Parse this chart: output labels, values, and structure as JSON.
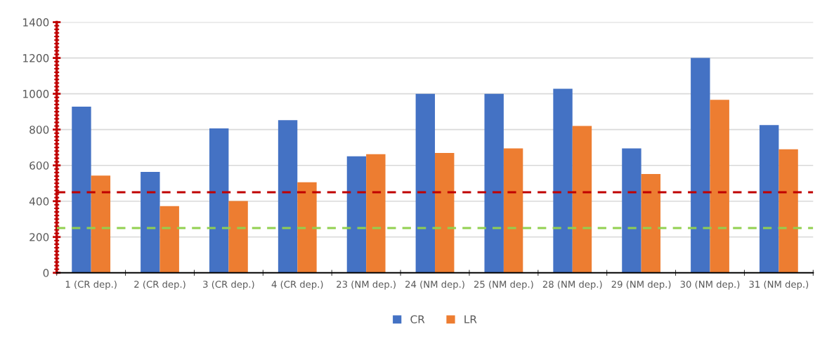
{
  "chart_data": {
    "type": "bar",
    "categories": [
      "1 (CR dep.)",
      "2 (CR dep.)",
      "3 (CR dep.)",
      "4 (CR dep.)",
      "23 (NM dep.)",
      "24 (NM dep.)",
      "25 (NM dep.)",
      "28 (NM dep.)",
      "29 (NM dep.)",
      "30 (NM dep.)",
      "31 (NM dep.)"
    ],
    "series": [
      {
        "name": "CR",
        "color": "#4472c4",
        "values": [
          928,
          564,
          807,
          853,
          651,
          1000,
          1000,
          1028,
          695,
          1200,
          825
        ]
      },
      {
        "name": "LR",
        "color": "#ed7d31",
        "values": [
          543,
          373,
          401,
          506,
          663,
          669,
          695,
          820,
          552,
          966,
          690
        ]
      }
    ],
    "ylim": [
      0,
      1400
    ],
    "yticks": [
      0,
      200,
      400,
      600,
      800,
      1000,
      1200,
      1400
    ],
    "grid": "y",
    "legend": "bottom",
    "ref_lines": [
      {
        "axis": "y",
        "value": 450,
        "color": "#c00000",
        "line_style": "dashed"
      },
      {
        "axis": "y",
        "value": 250,
        "color": "#92d050",
        "line_style": "dashed"
      }
    ]
  }
}
